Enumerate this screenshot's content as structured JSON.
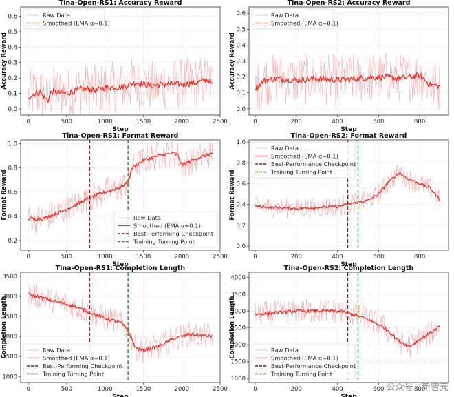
{
  "watermark": "公众号 · 新智元",
  "colors": {
    "raw": "#f4b6b6",
    "smoothed": "#e8322c",
    "best": "#8b1a1a",
    "turning": "#2a8a2a",
    "grid": "#dddddd"
  },
  "chart_data": [
    {
      "type": "line",
      "title": "Tina-Open-RS1: Accuracy Reward",
      "xlabel": "Step",
      "ylabel": "Accuracy Reward",
      "xlim": [
        -100,
        2500
      ],
      "ylim": [
        -0.04,
        0.66
      ],
      "xticks": [
        0,
        500,
        1000,
        1500,
        2000,
        2500
      ],
      "yticks": [
        0.0,
        0.1,
        0.2,
        0.3,
        0.4,
        0.5,
        0.6
      ],
      "steps": 2400,
      "legend_loc": "upper-left",
      "series": [
        {
          "name": "Raw Data",
          "role": "raw",
          "noise": 0.17
        },
        {
          "name": "Smoothed (EMA α=0.1)",
          "role": "smoothed",
          "x": [
            0,
            150,
            250,
            300,
            500,
            700,
            900,
            1000,
            1200,
            1400,
            1600,
            1800,
            2000,
            2200,
            2350,
            2400
          ],
          "y": [
            0.08,
            0.11,
            0.05,
            0.11,
            0.1,
            0.13,
            0.12,
            0.14,
            0.14,
            0.17,
            0.15,
            0.16,
            0.16,
            0.17,
            0.19,
            0.15
          ]
        }
      ],
      "vlines": []
    },
    {
      "type": "line",
      "title": "Tina-Open-RS2: Accuracy Reward",
      "xlabel": "Step",
      "ylabel": "Accuracy Reward",
      "xlim": [
        -30,
        940
      ],
      "ylim": [
        -0.04,
        0.64
      ],
      "xticks": [
        0,
        200,
        400,
        600,
        800
      ],
      "yticks": [
        0.0,
        0.1,
        0.2,
        0.3,
        0.4,
        0.5,
        0.6
      ],
      "steps": 900,
      "legend_loc": "upper-left",
      "series": [
        {
          "name": "Raw Data",
          "role": "raw",
          "noise": 0.16
        },
        {
          "name": "Smoothed (EMA α=0.1)",
          "role": "smoothed",
          "x": [
            0,
            50,
            100,
            200,
            300,
            400,
            500,
            600,
            700,
            800,
            850,
            900
          ],
          "y": [
            0.13,
            0.18,
            0.19,
            0.18,
            0.19,
            0.18,
            0.19,
            0.2,
            0.19,
            0.21,
            0.15,
            0.14
          ]
        }
      ],
      "vlines": []
    },
    {
      "type": "line",
      "title": "Tina-Open-RS1: Format Reward",
      "xlabel": "Step",
      "ylabel": "Format Reward",
      "xlim": [
        -100,
        2500
      ],
      "ylim": [
        0.12,
        1.03
      ],
      "xticks": [
        0,
        500,
        1000,
        1500,
        2000,
        2500
      ],
      "yticks": [
        0.2,
        0.4,
        0.6,
        0.8,
        1.0
      ],
      "steps": 2400,
      "legend_loc": "lower-right",
      "series": [
        {
          "name": "Raw Data",
          "role": "raw",
          "noise": 0.12
        },
        {
          "name": "Smoothed (EMA α=0.1)",
          "role": "smoothed",
          "x": [
            0,
            200,
            400,
            600,
            800,
            1000,
            1200,
            1300,
            1350,
            1500,
            1700,
            1900,
            1950,
            2000,
            2200,
            2400
          ],
          "y": [
            0.38,
            0.38,
            0.43,
            0.49,
            0.55,
            0.6,
            0.64,
            0.68,
            0.8,
            0.86,
            0.9,
            0.92,
            0.9,
            0.82,
            0.88,
            0.92
          ]
        }
      ],
      "vlines": [
        {
          "name": "Best-Performing Checkpoint",
          "x": 800,
          "role": "best"
        },
        {
          "name": "Training Turning Point",
          "x": 1300,
          "role": "turning"
        }
      ]
    },
    {
      "type": "line",
      "title": "Tina-Open-RS2: Format Reward",
      "xlabel": "Step",
      "ylabel": "Format Reward",
      "xlim": [
        -30,
        940
      ],
      "ylim": [
        -0.04,
        1.02
      ],
      "xticks": [
        0,
        200,
        400,
        600,
        800
      ],
      "yticks": [
        0.0,
        0.2,
        0.4,
        0.6,
        0.8,
        1.0
      ],
      "steps": 900,
      "legend_loc": "upper-left",
      "series": [
        {
          "name": "Raw Data",
          "role": "raw",
          "noise": 0.1
        },
        {
          "name": "Smoothed (EMA α=0.1)",
          "role": "smoothed",
          "x": [
            0,
            100,
            200,
            300,
            400,
            450,
            500,
            550,
            600,
            650,
            700,
            750,
            800,
            850,
            900
          ],
          "y": [
            0.38,
            0.37,
            0.36,
            0.37,
            0.38,
            0.4,
            0.42,
            0.44,
            0.5,
            0.62,
            0.7,
            0.64,
            0.6,
            0.56,
            0.44
          ]
        }
      ],
      "vlines": [
        {
          "name": "Best-Performance Checkpoint",
          "x": 450,
          "role": "best"
        },
        {
          "name": "Training Turning Point",
          "x": 500,
          "role": "turning"
        }
      ]
    },
    {
      "type": "line",
      "title": "Tina-Open-RS1: Completion Length",
      "xlabel": "Step",
      "ylabel": "Completion Length",
      "xlim": [
        -100,
        2500
      ],
      "ylim": [
        850,
        3600
      ],
      "xticks": [
        0,
        500,
        1000,
        1500,
        2000,
        2500
      ],
      "yticks": [
        1000,
        1500,
        2000,
        2500,
        3000,
        3500
      ],
      "steps": 2400,
      "legend_loc": "lower-left",
      "series": [
        {
          "name": "Raw Data",
          "role": "raw",
          "noise": 320
        },
        {
          "name": "Smoothed (EMA α=0.1)",
          "role": "smoothed",
          "x": [
            0,
            200,
            400,
            600,
            800,
            1000,
            1200,
            1300,
            1400,
            1500,
            1700,
            1900,
            2000,
            2100,
            2400
          ],
          "y": [
            3050,
            2950,
            2850,
            2750,
            2600,
            2450,
            2350,
            2150,
            1700,
            1650,
            1750,
            1950,
            2000,
            2050,
            2000
          ]
        }
      ],
      "vlines": [
        {
          "name": "Best-Performing Checkpoint",
          "x": 800,
          "role": "best"
        },
        {
          "name": "Training Turning Point",
          "x": 1300,
          "role": "turning"
        }
      ]
    },
    {
      "type": "line",
      "title": "Tina-Open-RS2: Completion Length",
      "xlabel": "Step",
      "ylabel": "Completion Length",
      "xlim": [
        -30,
        940
      ],
      "ylim": [
        880,
        4150
      ],
      "xticks": [
        0,
        200,
        400,
        600,
        800
      ],
      "yticks": [
        1000,
        1500,
        2000,
        2500,
        3000,
        3500,
        4000
      ],
      "steps": 900,
      "legend_loc": "lower-left",
      "series": [
        {
          "name": "Raw Data",
          "role": "raw",
          "noise": 380
        },
        {
          "name": "Smoothed (EMA α=0.1)",
          "role": "smoothed",
          "x": [
            0,
            100,
            200,
            300,
            400,
            450,
            500,
            550,
            600,
            650,
            700,
            750,
            800,
            850,
            900
          ],
          "y": [
            2900,
            2950,
            3000,
            3000,
            3000,
            2950,
            2850,
            2750,
            2600,
            2400,
            2100,
            1950,
            2150,
            2350,
            2550
          ]
        }
      ],
      "vlines": [
        {
          "name": "Best-Performance Checkpoint",
          "x": 450,
          "role": "best"
        },
        {
          "name": "Training Turning Point",
          "x": 500,
          "role": "turning"
        }
      ]
    }
  ]
}
